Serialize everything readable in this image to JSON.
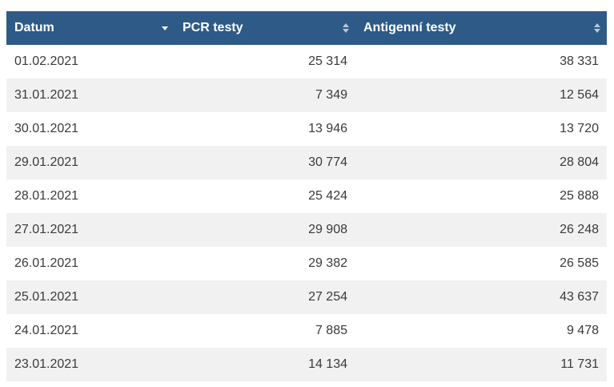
{
  "table": {
    "headers": [
      {
        "label": "Datum",
        "sort": "desc-icon"
      },
      {
        "label": "PCR testy",
        "sort": "sort-both-icon"
      },
      {
        "label": "Antigenní testy",
        "sort": "sort-both-icon"
      }
    ],
    "rows": [
      {
        "date": "01.02.2021",
        "pcr": "25 314",
        "antigen": "38 331"
      },
      {
        "date": "31.01.2021",
        "pcr": "7 349",
        "antigen": "12 564"
      },
      {
        "date": "30.01.2021",
        "pcr": "13 946",
        "antigen": "13 720"
      },
      {
        "date": "29.01.2021",
        "pcr": "30 774",
        "antigen": "28 804"
      },
      {
        "date": "28.01.2021",
        "pcr": "25 424",
        "antigen": "25 888"
      },
      {
        "date": "27.01.2021",
        "pcr": "29 908",
        "antigen": "26 248"
      },
      {
        "date": "26.01.2021",
        "pcr": "29 382",
        "antigen": "26 585"
      },
      {
        "date": "25.01.2021",
        "pcr": "27 254",
        "antigen": "43 637"
      },
      {
        "date": "24.01.2021",
        "pcr": "7 885",
        "antigen": "9 478"
      },
      {
        "date": "23.01.2021",
        "pcr": "14 134",
        "antigen": "11 731"
      }
    ]
  },
  "colors": {
    "header_bg": "#2d5a87",
    "header_text": "#ffffff",
    "row_alt": "#f1f1f1",
    "icon_inactive": "#b8c8da"
  }
}
